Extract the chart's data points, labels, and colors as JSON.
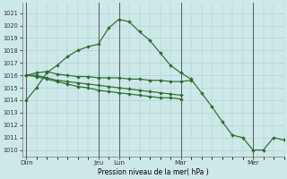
{
  "bg_color": "#cde8e8",
  "grid_color": "#aacccc",
  "line_color": "#2d6b2d",
  "ylabel": "Pression niveau de la mer( hPa )",
  "ylim": [
    1009.5,
    1021.8
  ],
  "yticks": [
    1010,
    1011,
    1012,
    1013,
    1014,
    1015,
    1016,
    1017,
    1018,
    1019,
    1020,
    1021
  ],
  "day_labels": [
    "Dim",
    "Jeu",
    "Lun",
    "Mar",
    "Mer"
  ],
  "day_x": [
    0,
    3.5,
    4.5,
    7.5,
    11.0
  ],
  "vlines_x": [
    0,
    3.5,
    4.5,
    7.5,
    11.0
  ],
  "xlim": [
    -0.2,
    12.5
  ],
  "main_x": [
    0,
    0.5,
    1.0,
    1.5,
    2.0,
    2.5,
    3.0,
    3.5,
    4.0,
    4.5,
    5.0,
    5.5,
    6.0,
    6.5,
    7.0,
    7.5,
    8.0,
    8.5,
    9.0,
    9.5,
    10.0,
    10.5,
    11.0,
    11.5,
    12.0,
    12.5
  ],
  "main_y": [
    1014.0,
    1015.0,
    1016.2,
    1016.8,
    1017.5,
    1018.0,
    1018.3,
    1018.5,
    1019.8,
    1020.5,
    1020.3,
    1019.5,
    1018.8,
    1017.8,
    1016.8,
    1016.2,
    1015.7,
    1014.6,
    1013.5,
    1012.3,
    1011.2,
    1011.0,
    1010.0,
    1010.0,
    1011.0,
    1010.8
  ],
  "flat1_x": [
    0,
    0.5,
    1.0,
    1.5,
    2.0,
    2.5,
    3.0,
    3.5,
    4.0,
    4.5,
    5.0,
    5.5,
    6.0,
    6.5,
    7.0,
    7.5,
    8.0
  ],
  "flat1_y": [
    1016.0,
    1016.2,
    1016.3,
    1016.1,
    1016.0,
    1015.9,
    1015.9,
    1015.8,
    1015.8,
    1015.8,
    1015.7,
    1015.7,
    1015.6,
    1015.6,
    1015.5,
    1015.5,
    1015.6
  ],
  "flat2_x": [
    0,
    0.5,
    1.0,
    1.5,
    2.0,
    2.5,
    3.0,
    3.5,
    4.0,
    4.5,
    5.0,
    5.5,
    6.0,
    6.5,
    7.0,
    7.5
  ],
  "flat2_y": [
    1016.0,
    1016.0,
    1015.8,
    1015.6,
    1015.5,
    1015.4,
    1015.3,
    1015.2,
    1015.1,
    1015.0,
    1014.9,
    1014.8,
    1014.7,
    1014.6,
    1014.5,
    1014.4
  ],
  "flat3_x": [
    0,
    0.5,
    1.0,
    1.5,
    2.0,
    2.5,
    3.0,
    3.5,
    4.0,
    4.5,
    5.0,
    5.5,
    6.0,
    6.5,
    7.0,
    7.5
  ],
  "flat3_y": [
    1016.0,
    1015.9,
    1015.7,
    1015.5,
    1015.3,
    1015.1,
    1015.0,
    1014.8,
    1014.7,
    1014.6,
    1014.5,
    1014.4,
    1014.3,
    1014.2,
    1014.2,
    1014.1
  ]
}
